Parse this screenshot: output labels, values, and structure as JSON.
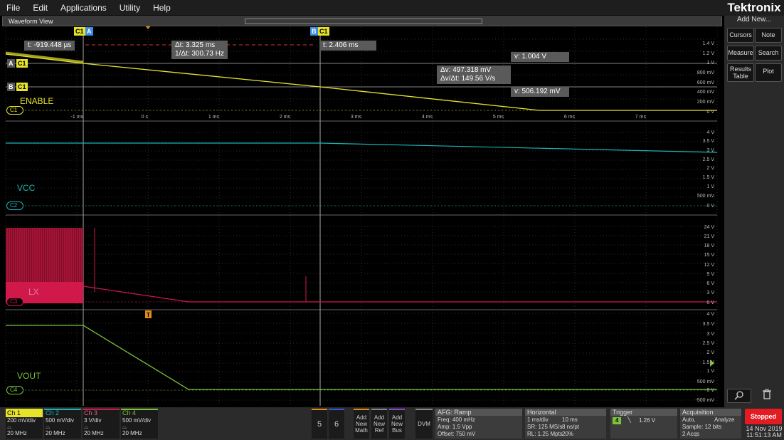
{
  "menu": [
    "File",
    "Edit",
    "Applications",
    "Utility",
    "Help"
  ],
  "brand": "Tektronix",
  "right_panel": {
    "add_new": "Add New...",
    "cursors": "Cursors",
    "note": "Note",
    "measure": "Measure",
    "search": "Search",
    "results_table": "Results Table",
    "plot": "Plot"
  },
  "waveform_view_title": "Waveform View",
  "cursors": {
    "a_label": "A",
    "b_label": "B",
    "channel": "C1",
    "a_time": "t: -919.448 µs",
    "delta_t": "Δt: 3.325 ms",
    "inv_delta_t": "1/Δt: 300.73 Hz",
    "b_time": "t: 2.406 ms",
    "a_v": "v: 1.004 V",
    "delta_v": "Δv: 497.318 mV",
    "dv_dt": "Δv/Δt: 149.56 V/s",
    "b_v": "v: 506.192 mV"
  },
  "channels": {
    "ch1": {
      "name": "ENABLE",
      "pill": "C1",
      "color": "#e6e32b",
      "scale": [
        "1.4 V",
        "1.2 V",
        "1 V",
        "800 mV",
        "600 mV",
        "400 mV",
        "200 mV",
        "0 V"
      ]
    },
    "ch2": {
      "name": "VCC",
      "pill": "C2",
      "color": "#1bb5b5",
      "scale": [
        "4 V",
        "3.5 V",
        "3 V",
        "2.5 V",
        "2 V",
        "1.5 V",
        "1 V",
        "500 mV",
        "0 V"
      ]
    },
    "ch3": {
      "name": "LX",
      "pill": "C3",
      "color": "#c0143c",
      "scale": [
        "24 V",
        "21 V",
        "18 V",
        "15 V",
        "12 V",
        "9 V",
        "6 V",
        "3 V",
        "0 V"
      ]
    },
    "ch4": {
      "name": "VOUT",
      "pill": "C4",
      "color": "#7cc23a",
      "scale": [
        "4 V",
        "3.5 V",
        "3 V",
        "2.5 V",
        "2 V",
        "1.5 V",
        "1 V",
        "500 mV",
        "0 V",
        "-500 mV"
      ]
    }
  },
  "time_axis": [
    "-1 ms",
    "0 s",
    "1 ms",
    "2 ms",
    "3 ms",
    "4 ms",
    "5 ms",
    "6 ms",
    "7 ms"
  ],
  "trigger_marker": "T",
  "bottom": {
    "ch1": {
      "title": "Ch 1",
      "vdiv": "200 mV/div",
      "bw": "20 MHz"
    },
    "ch2": {
      "title": "Ch 2",
      "vdiv": "500 mV/div",
      "bw": "20 MHz"
    },
    "ch3": {
      "title": "Ch 3",
      "vdiv": "3 V/div",
      "bw": "20 MHz"
    },
    "ch4": {
      "title": "Ch 4",
      "vdiv": "500 mV/div",
      "bw": "20 MHz"
    },
    "btn5": "5",
    "btn6": "6",
    "add_math": "Add New Math",
    "add_ref": "Add New Ref",
    "add_bus": "Add New Bus",
    "dvm": "DVM",
    "afg": {
      "title": "AFG: Ramp",
      "l1": "Freq: 400 mHz",
      "l2": "Amp: 1.5 Vpp",
      "l3": "Offset: 750 mV"
    },
    "horizontal": {
      "title": "Horizontal",
      "l1a": "1 ms/div",
      "l1b": "10 ms",
      "l2a": "SR: 125 MS/s",
      "l2b": "8 ns/pt",
      "l3a": "RL: 1.25 Mpts",
      "l3b": "20%"
    },
    "trigger": {
      "title": "Trigger",
      "ch": "4",
      "level": "1.26 V"
    },
    "acquisition": {
      "title": "Acquisition",
      "l1a": "Auto,",
      "l1b": "Analyze",
      "l2": "Sample: 12 bits",
      "l3": "2 Acqs"
    },
    "status": "Stopped",
    "date": "14 Nov 2019",
    "time": "11:51:13 AM"
  }
}
